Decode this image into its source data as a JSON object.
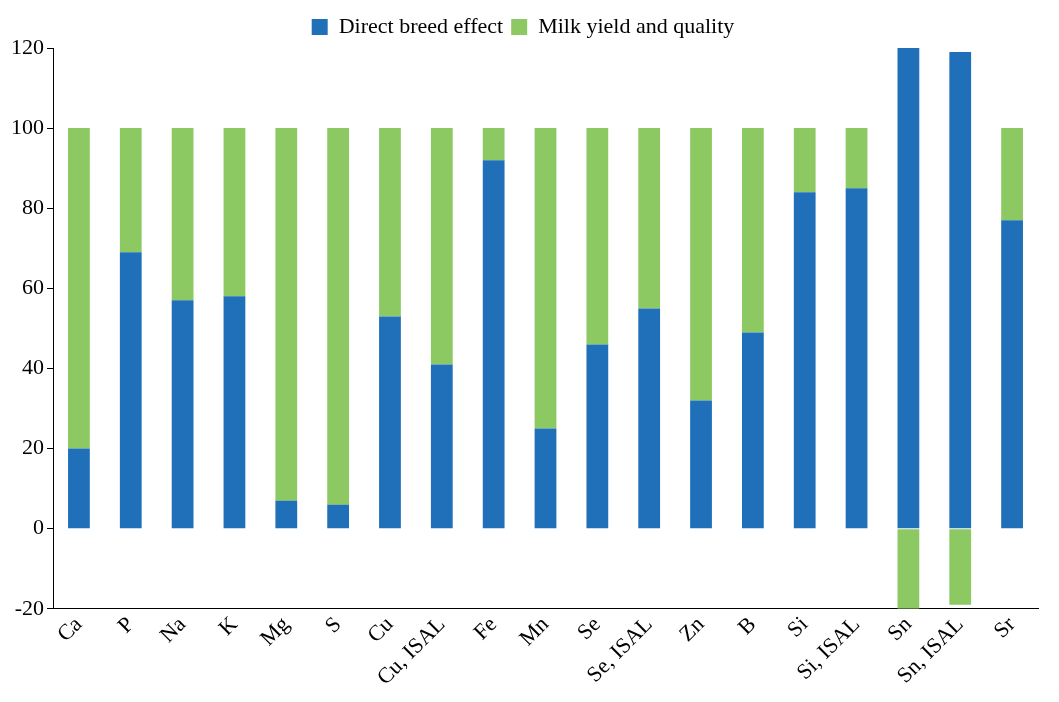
{
  "chart_data": {
    "type": "bar",
    "stacked": true,
    "legend": "top",
    "grid": false,
    "categories": [
      "Ca",
      "P",
      "Na",
      "K",
      "Mg",
      "S",
      "Cu",
      "Cu, ISAL",
      "Fe",
      "Mn",
      "Se",
      "Se, ISAL",
      "Zn",
      "B",
      "Si",
      "Si, ISAL",
      "Sn",
      "Sn, ISAL",
      "Sr"
    ],
    "series": [
      {
        "name": "Direct breed effect",
        "color": "#1f70b8",
        "values": [
          20,
          69,
          57,
          58,
          7,
          6,
          53,
          41,
          92,
          25,
          46,
          55,
          32,
          49,
          84,
          85,
          120,
          119,
          77
        ]
      },
      {
        "name": "Milk yield and quality",
        "color": "#8cc963",
        "values": [
          80,
          31,
          43,
          42,
          93,
          94,
          47,
          59,
          8,
          75,
          54,
          45,
          68,
          51,
          16,
          15,
          -20,
          -19,
          23
        ]
      }
    ],
    "ylim": [
      -20,
      120
    ],
    "yticks": [
      -20,
      0,
      20,
      40,
      60,
      80,
      100,
      120
    ]
  }
}
